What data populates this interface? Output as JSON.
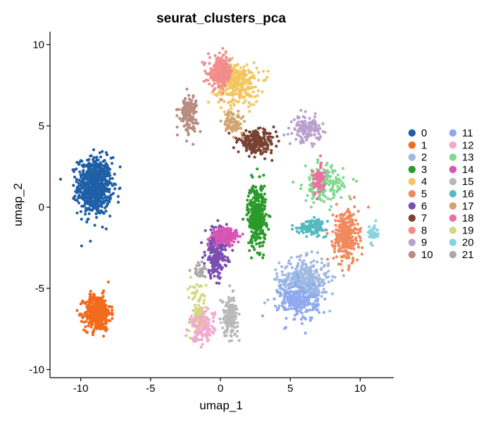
{
  "chart_data": {
    "type": "scatter",
    "title": "seurat_clusters_pca",
    "xlabel": "umap_1",
    "ylabel": "umap_2",
    "xlim": [
      -12.2,
      12.4
    ],
    "ylim": [
      -10.5,
      10.8
    ],
    "xticks": [
      -10,
      -5,
      0,
      5,
      10
    ],
    "yticks": [
      -10,
      -5,
      0,
      5,
      10
    ],
    "grid": false,
    "legend_position": "right",
    "legend_columns": 2,
    "clusters": [
      {
        "name": "0",
        "color": "#1F5FA6",
        "center": [
          -9.0,
          1.3
        ],
        "spread": [
          1.1,
          1.6
        ],
        "n": 700
      },
      {
        "name": "1",
        "color": "#F26B1D",
        "center": [
          -8.8,
          -6.5
        ],
        "spread": [
          0.85,
          1.0
        ],
        "n": 450
      },
      {
        "name": "2",
        "color": "#9EB9E2",
        "center": [
          6.0,
          -4.5
        ],
        "spread": [
          1.6,
          1.2
        ],
        "n": 380
      },
      {
        "name": "3",
        "color": "#2A9A2A",
        "center": [
          2.6,
          -0.5
        ],
        "spread": [
          0.6,
          1.8
        ],
        "n": 350
      },
      {
        "name": "4",
        "color": "#F3C660",
        "center": [
          1.2,
          7.6
        ],
        "spread": [
          1.4,
          1.2
        ],
        "n": 300
      },
      {
        "name": "5",
        "color": "#F08A5E",
        "center": [
          9.0,
          -1.8
        ],
        "spread": [
          0.8,
          1.5
        ],
        "n": 300
      },
      {
        "name": "6",
        "color": "#7B4FB0",
        "center": [
          -0.3,
          -2.8
        ],
        "spread": [
          0.7,
          1.4
        ],
        "n": 260
      },
      {
        "name": "7",
        "color": "#7A4232",
        "center": [
          2.6,
          4.0
        ],
        "spread": [
          1.2,
          0.6
        ],
        "n": 230
      },
      {
        "name": "8",
        "color": "#F28C8C",
        "center": [
          0.0,
          8.3
        ],
        "spread": [
          0.8,
          0.9
        ],
        "n": 200
      },
      {
        "name": "9",
        "color": "#B9A0CE",
        "center": [
          6.2,
          4.8
        ],
        "spread": [
          0.9,
          0.7
        ],
        "n": 140
      },
      {
        "name": "10",
        "color": "#B88C80",
        "center": [
          -2.3,
          5.8
        ],
        "spread": [
          0.6,
          1.0
        ],
        "n": 140
      },
      {
        "name": "11",
        "color": "#8FA9EE",
        "center": [
          5.6,
          -5.8
        ],
        "spread": [
          1.3,
          1.1
        ],
        "n": 220
      },
      {
        "name": "12",
        "color": "#F2A9CE",
        "center": [
          -1.3,
          -7.3
        ],
        "spread": [
          0.8,
          0.9
        ],
        "n": 180
      },
      {
        "name": "13",
        "color": "#82D890",
        "center": [
          7.4,
          1.4
        ],
        "spread": [
          1.3,
          1.0
        ],
        "n": 170
      },
      {
        "name": "14",
        "color": "#D855B4",
        "center": [
          0.4,
          -1.8
        ],
        "spread": [
          0.9,
          0.5
        ],
        "n": 160
      },
      {
        "name": "15",
        "color": "#B8B8B8",
        "center": [
          0.7,
          -6.7
        ],
        "spread": [
          0.5,
          1.1
        ],
        "n": 140
      },
      {
        "name": "16",
        "color": "#56B9C0",
        "center": [
          6.6,
          -1.2
        ],
        "spread": [
          0.9,
          0.4
        ],
        "n": 120
      },
      {
        "name": "17",
        "color": "#D2A56F",
        "center": [
          0.9,
          5.2
        ],
        "spread": [
          0.6,
          0.6
        ],
        "n": 90
      },
      {
        "name": "18",
        "color": "#EC6FA0",
        "center": [
          7.0,
          1.7
        ],
        "spread": [
          0.4,
          0.8
        ],
        "n": 80
      },
      {
        "name": "19",
        "color": "#D5D781",
        "center": [
          -1.6,
          -6.0
        ],
        "spread": [
          0.6,
          1.6
        ],
        "n": 60
      },
      {
        "name": "20",
        "color": "#8AD2DF",
        "center": [
          10.9,
          -1.6
        ],
        "spread": [
          0.3,
          0.5
        ],
        "n": 40
      },
      {
        "name": "21",
        "color": "#A8A8A8",
        "center": [
          -1.5,
          -3.9
        ],
        "spread": [
          0.4,
          0.4
        ],
        "n": 30
      }
    ]
  }
}
